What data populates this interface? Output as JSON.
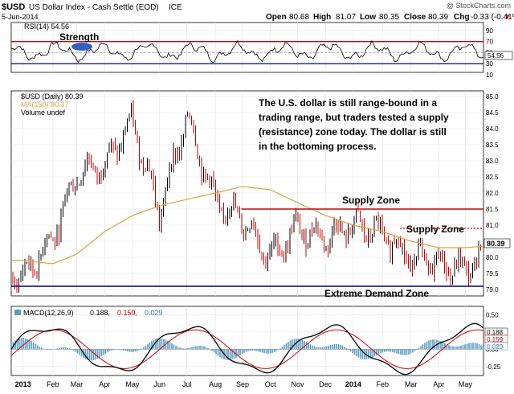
{
  "header": {
    "symbol": "$USD",
    "name": "US Dollar Index - Cash Settle (EOD)",
    "exchange": "ICE",
    "date": "5-Jun-2014",
    "watermark": "@ StockCharts.com",
    "open_label": "Open",
    "open": "80.68",
    "high_label": "High",
    "high": "81.07",
    "low_label": "Low",
    "low": "80.35",
    "close_label": "Close",
    "close": "80.39",
    "chg_label": "Chg",
    "chg": "-0.33 (-0.41%)",
    "chg_arrow": "▼"
  },
  "rsi": {
    "label": "RSI(14) 54.56",
    "tag": "Strength",
    "last_value_label": "54.56",
    "ticks": [
      "90",
      "70",
      "50",
      "30",
      "10"
    ]
  },
  "price": {
    "legend": [
      "$USD (Daily) 80.39",
      "MA(150) 80.37",
      "Volume undef"
    ],
    "last_value_label": "80.39",
    "annotation_lines": [
      "The U.S. dollar is still range-bound in a",
      "trading range, but traders tested a supply",
      "(resistance) zone today. The dollar is still",
      "in the bottoming process."
    ],
    "supply_zone_label": "Supply Zone",
    "supply_zone_label_2": "Supply Zone",
    "demand_zone_label": "Extreme Demand Zone",
    "ticks": [
      "85.0",
      "84.5",
      "84.0",
      "83.5",
      "83.0",
      "82.5",
      "82.0",
      "81.5",
      "81.0",
      "80.5",
      "80.0",
      "79.5",
      "79.0"
    ]
  },
  "macd": {
    "label_prefix": "MACD(12,26,9)",
    "macd_value": "0.188,",
    "signal_value": "0.159,",
    "hist_value": "0.029",
    "ticks": [
      "0.50",
      "0.25",
      "0.00",
      "-0.25"
    ],
    "value_labels": [
      "0.188",
      "0.159",
      "0.029"
    ]
  },
  "x_axis": [
    "2013",
    "Feb",
    "Mar",
    "Apr",
    "May",
    "Jun",
    "Jul",
    "Aug",
    "Sep",
    "Oct",
    "Nov",
    "Dec",
    "2014",
    "Feb",
    "Mar",
    "Apr",
    "May",
    "Jun"
  ],
  "colors": {
    "up": "#000000",
    "down": "#cc0000",
    "ma": "#d9a441",
    "supply": "#cc0000",
    "demand": "#00008b",
    "macd": "#000000",
    "signal": "#cc0000",
    "hist": "#5a9bc0",
    "rsi_top": "#cc0000",
    "rsi_bottom": "#00008b"
  },
  "chart_data": {
    "type": "line",
    "title": "$USD US Dollar Index - Cash Settle (EOD) ICE",
    "ylabel": "",
    "ylim": [
      79.0,
      85.0
    ],
    "x": [
      "2013-01",
      "2013-02",
      "2013-03",
      "2013-04",
      "2013-05",
      "2013-06",
      "2013-07",
      "2013-08",
      "2013-09",
      "2013-10",
      "2013-11",
      "2013-12",
      "2014-01",
      "2014-02",
      "2014-03",
      "2014-04",
      "2014-05",
      "2014-06"
    ],
    "series": [
      {
        "name": "$USD (Daily)",
        "values": [
          79.4,
          80.6,
          82.6,
          82.9,
          84.2,
          81.4,
          84.4,
          81.7,
          81.2,
          80.0,
          80.9,
          80.6,
          81.0,
          80.7,
          80.0,
          79.8,
          79.6,
          80.5
        ]
      },
      {
        "name": "MA(150)",
        "values": [
          79.9,
          79.8,
          80.1,
          80.8,
          81.3,
          81.6,
          81.8,
          82.0,
          82.2,
          82.1,
          81.7,
          81.3,
          81.0,
          80.8,
          80.5,
          80.3,
          80.3,
          80.37
        ]
      }
    ],
    "reference_lines": [
      {
        "label": "Supply Zone",
        "value": 81.5
      },
      {
        "label": "Supply Zone",
        "value": 80.9
      },
      {
        "label": "Extreme Demand Zone",
        "value": 79.1
      }
    ]
  }
}
